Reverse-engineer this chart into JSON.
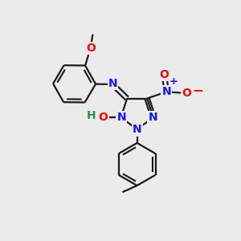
{
  "background_color": "#ebebeb",
  "bond_color": "#1a1a1a",
  "bond_width": 1.6,
  "atom_colors": {
    "N": "#1414ff",
    "O": "#ff0000",
    "C": "#1a1a1a",
    "H": "#2e8b57"
  },
  "font_size_atoms": 10,
  "font_size_small": 8.5
}
